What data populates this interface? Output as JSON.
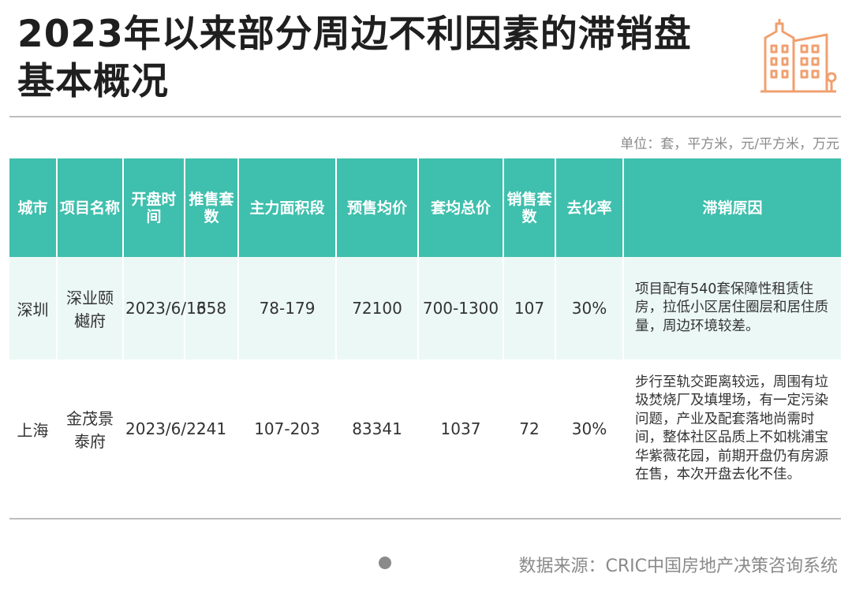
{
  "title": "2023年以来部分周边不利因素的滞销盘基本概况",
  "unit_note": "单位：套，平方米，元/平方米，万元",
  "table": {
    "headers": [
      "城市",
      "项目名称",
      "开盘时间",
      "推售套数",
      "主力面积段",
      "预售均价",
      "套均总价",
      "销售套数",
      "去化率",
      "滞销原因"
    ],
    "rows": [
      {
        "city": "深圳",
        "project": "深业颐樾府",
        "open_date": "2023/6/16",
        "units_launched": "358",
        "area_range": "78-179",
        "avg_price": "72100",
        "avg_total_price": "700-1300",
        "units_sold": "107",
        "absorption_rate": "30%",
        "reason": "项目配有540套保障性租赁住房，拉低小区居住圈层和居住质量，周边环境较差。"
      },
      {
        "city": "上海",
        "project": "金茂景泰府",
        "open_date": "2023/6/22",
        "units_launched": "241",
        "area_range": "107-203",
        "avg_price": "83341",
        "avg_total_price": "1037",
        "units_sold": "72",
        "absorption_rate": "30%",
        "reason": "步行至轨交距离较远，周围有垃圾焚烧厂及填埋场，有一定污染问题，产业及配套落地尚需时间，整体社区品质上不如桃浦宝华紫薇花园，前期开盘仍有房源在售，本次开盘去化不佳。"
      }
    ]
  },
  "source": "数据来源：CRIC中国房地产决策咨询系统",
  "icon": "building-icon",
  "colors": {
    "header_bg": "#3fbfad",
    "row_alt": "#ecf8f6",
    "icon": "#f0a070"
  }
}
